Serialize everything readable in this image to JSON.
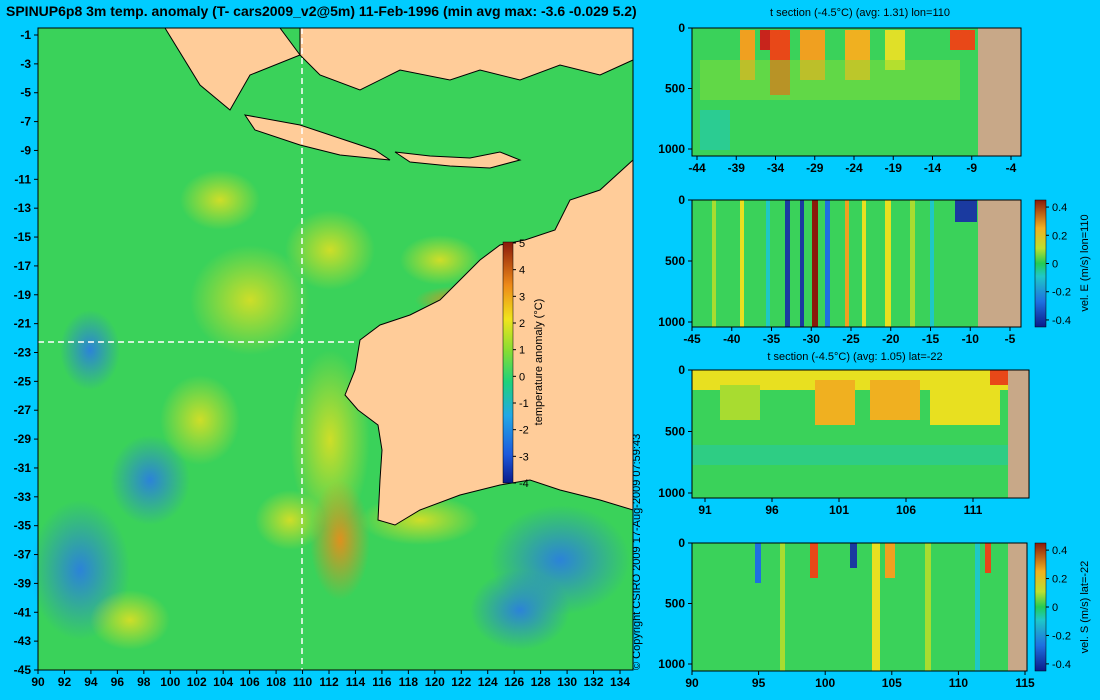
{
  "title": "SPINUP6p8 3m temp. anomaly (T- cars2009_v2@5m) 11-Feb-1996 (min avg max: -3.6 -0.029 5.2)",
  "copyright": "© Copyright CSIRO 2009   17-Aug-2009 07:59:43",
  "colors": {
    "background": "#00ccff",
    "land": "#ffcc99",
    "section_land": "#c8a888"
  },
  "panels": {
    "t_lon_title": "t section (-4.5°C) (avg: 1.31) lon=110",
    "t_lat_title": "t section (-4.5°C) (avg: 1.05) lat=-22",
    "vE_label": "vel. E (m/s) lon=110",
    "vS_label": "vel. S (m/s) lat=-22"
  },
  "chart_data": [
    {
      "type": "heatmap",
      "title": "SPINUP6p8 3m temp. anomaly (T- cars2009_v2@5m) 11-Feb-1996 (min avg max: -3.6 -0.029 5.2)",
      "xlabel": "",
      "ylabel": "",
      "x_ticks": [
        "90",
        "92",
        "94",
        "96",
        "98",
        "100",
        "102",
        "104",
        "106",
        "108",
        "110",
        "112",
        "114",
        "116",
        "118",
        "120",
        "122",
        "124",
        "126",
        "128",
        "130",
        "132",
        "134"
      ],
      "y_ticks": [
        "-1",
        "-3",
        "-5",
        "-7",
        "-9",
        "-11",
        "-13",
        "-15",
        "-17",
        "-19",
        "-21",
        "-23",
        "-25",
        "-27",
        "-29",
        "-31",
        "-33",
        "-35",
        "-37",
        "-39",
        "-41",
        "-43",
        "-45"
      ],
      "xlim": [
        90,
        135
      ],
      "ylim": [
        -45,
        0
      ],
      "colorbar": {
        "label": "temperature anomaly (°C)",
        "ticks": [
          "5",
          "4",
          "3",
          "2",
          "1",
          "0",
          "-1",
          "-2",
          "-3",
          "-4"
        ],
        "range": [
          -4,
          5
        ]
      },
      "section_lines": {
        "lon": 110,
        "lat": -22
      }
    },
    {
      "type": "heatmap",
      "title": "t section (-4.5°C) (avg: 1.31) lon=110",
      "x_ticks": [
        "-44",
        "-39",
        "-34",
        "-29",
        "-24",
        "-19",
        "-14",
        "-9",
        "-4"
      ],
      "y_ticks": [
        "0",
        "500",
        "1000"
      ],
      "xlim": [
        -45,
        -2
      ],
      "ylim": [
        1050,
        0
      ]
    },
    {
      "type": "heatmap",
      "title": "",
      "x_ticks": [
        "-45",
        "-40",
        "-35",
        "-30",
        "-25",
        "-20",
        "-15",
        "-10",
        "-5"
      ],
      "y_ticks": [
        "0",
        "500",
        "1000"
      ],
      "xlim": [
        -45,
        -2
      ],
      "ylim": [
        1050,
        0
      ],
      "colorbar": {
        "label": "vel. E (m/s) lon=110",
        "ticks": [
          "0.4",
          "0.2",
          "0",
          "-0.2",
          "-0.4"
        ],
        "range": [
          -0.45,
          0.45
        ]
      }
    },
    {
      "type": "heatmap",
      "title": "t section (-4.5°C) (avg: 1.05) lat=-22",
      "x_ticks": [
        "91",
        "96",
        "101",
        "106",
        "111"
      ],
      "y_ticks": [
        "0",
        "500",
        "1000"
      ],
      "xlim": [
        90,
        115
      ],
      "ylim": [
        1050,
        0
      ]
    },
    {
      "type": "heatmap",
      "title": "",
      "x_ticks": [
        "90",
        "95",
        "100",
        "105",
        "110",
        "115"
      ],
      "y_ticks": [
        "0",
        "500",
        "1000"
      ],
      "xlim": [
        90,
        115
      ],
      "ylim": [
        1050,
        0
      ],
      "colorbar": {
        "label": "vel. S (m/s) lat=-22",
        "ticks": [
          "0.4",
          "0.2",
          "0",
          "-0.2",
          "-0.4"
        ],
        "range": [
          -0.45,
          0.45
        ]
      }
    }
  ]
}
